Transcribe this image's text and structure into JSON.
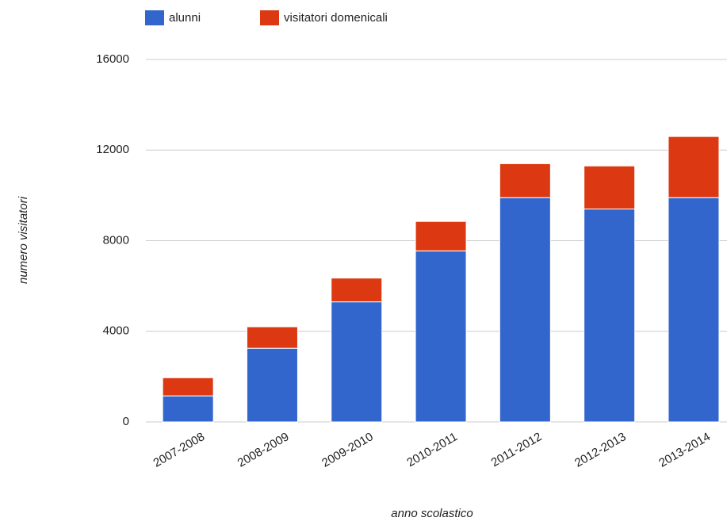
{
  "chart_data": {
    "type": "stacked_bar",
    "categories": [
      "2007-2008",
      "2008-2009",
      "2009-2010",
      "2010-2011",
      "2011-2012",
      "2012-2013",
      "2013-2014"
    ],
    "series": [
      {
        "name": "alunni",
        "color": "#3366cc",
        "values": [
          1150,
          3250,
          5300,
          7550,
          9900,
          9400,
          9900
        ]
      },
      {
        "name": "visitatori domenicali",
        "color": "#dc3912",
        "values": [
          800,
          950,
          1050,
          1300,
          1500,
          1900,
          2700
        ]
      }
    ],
    "ylim": [
      0,
      16000
    ],
    "yticks": [
      0,
      4000,
      8000,
      12000,
      16000
    ],
    "grid": true,
    "xlabel": "anno scolastico",
    "ylabel": "numero visitatori",
    "legend": "top"
  }
}
